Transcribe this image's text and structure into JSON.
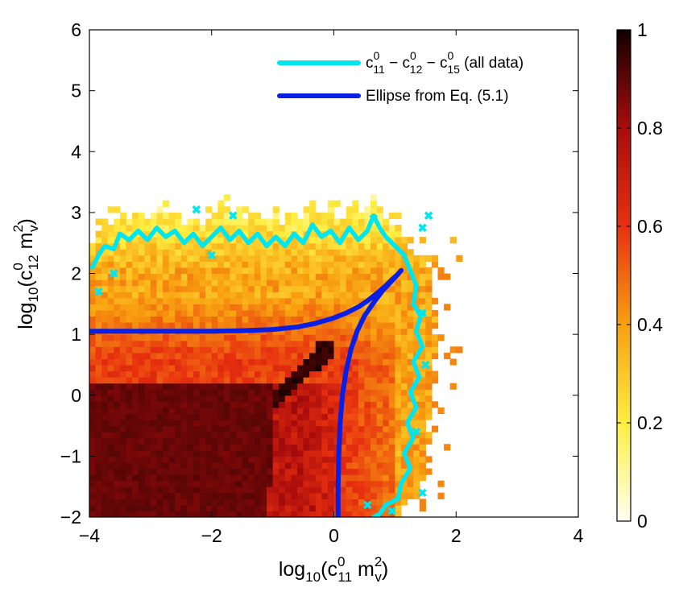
{
  "chart_data": {
    "type": "heatmap",
    "title": "",
    "xlabel": {
      "main": "log",
      "main_sub": "10",
      "open": "(c",
      "sup": "0",
      "sub": "11",
      "mid": " m",
      "sup2": "2",
      "sub2": "v",
      "close": ")"
    },
    "ylabel": {
      "main": "log",
      "main_sub": "10",
      "open": "(c",
      "sup": "0",
      "sub": "12",
      "mid": " m",
      "sup2": "2",
      "sub2": "v",
      "close": ")"
    },
    "xlim": [
      -4,
      4
    ],
    "ylim": [
      -2,
      6
    ],
    "xticks": [
      "−4",
      "−2",
      "0",
      "2",
      "4"
    ],
    "xtick_values": [
      -4,
      -2,
      0,
      2,
      4
    ],
    "yticks": [
      "−2",
      "−1",
      "0",
      "1",
      "2",
      "3",
      "4",
      "5",
      "6"
    ],
    "ytick_values": [
      -2,
      -1,
      0,
      1,
      2,
      3,
      4,
      5,
      6
    ],
    "colorbar": {
      "range": [
        0,
        1
      ],
      "ticks": [
        "0",
        "0.2",
        "0.4",
        "0.6",
        "0.8",
        "1"
      ],
      "tick_values": [
        0,
        0.2,
        0.4,
        0.6,
        0.8,
        1
      ],
      "colormap": "hot (reversed)"
    },
    "heatmap_description": {
      "grid_step": 0.1,
      "dense_region": {
        "x": [
          -4,
          -1.0
        ],
        "y": [
          -2,
          0.2
        ],
        "value": 0.88
      },
      "diagonal_ridge": {
        "from": [
          -1.5,
          -0.5
        ],
        "to": [
          0,
          0.9
        ],
        "value": 0.98
      },
      "mid_region_value": 0.45,
      "outer_region_value": 0.25
    },
    "series": [
      {
        "name": "c0_11 − c0_12 − c0_15 (all data)",
        "color": "#00e5ee",
        "kind": "contour",
        "points": [
          [
            -3.95,
            2.1
          ],
          [
            -3.85,
            2.3
          ],
          [
            -3.75,
            2.45
          ],
          [
            -3.6,
            2.4
          ],
          [
            -3.5,
            2.65
          ],
          [
            -3.35,
            2.55
          ],
          [
            -3.2,
            2.7
          ],
          [
            -3.05,
            2.55
          ],
          [
            -2.9,
            2.75
          ],
          [
            -2.75,
            2.6
          ],
          [
            -2.6,
            2.7
          ],
          [
            -2.45,
            2.5
          ],
          [
            -2.3,
            2.65
          ],
          [
            -2.15,
            2.45
          ],
          [
            -2.0,
            2.6
          ],
          [
            -1.85,
            2.75
          ],
          [
            -1.7,
            2.55
          ],
          [
            -1.55,
            2.7
          ],
          [
            -1.4,
            2.5
          ],
          [
            -1.25,
            2.65
          ],
          [
            -1.1,
            2.45
          ],
          [
            -0.95,
            2.6
          ],
          [
            -0.8,
            2.45
          ],
          [
            -0.65,
            2.65
          ],
          [
            -0.5,
            2.5
          ],
          [
            -0.35,
            2.8
          ],
          [
            -0.2,
            2.6
          ],
          [
            -0.05,
            2.7
          ],
          [
            0.1,
            2.5
          ],
          [
            0.25,
            2.75
          ],
          [
            0.4,
            2.55
          ],
          [
            0.55,
            2.7
          ],
          [
            0.65,
            2.95
          ],
          [
            0.75,
            2.75
          ],
          [
            0.85,
            2.6
          ],
          [
            1.0,
            2.45
          ],
          [
            1.15,
            2.3
          ],
          [
            1.25,
            2.05
          ],
          [
            1.35,
            1.8
          ],
          [
            1.3,
            1.5
          ],
          [
            1.42,
            1.3
          ],
          [
            1.35,
            1.05
          ],
          [
            1.45,
            0.8
          ],
          [
            1.3,
            0.55
          ],
          [
            1.4,
            0.3
          ],
          [
            1.25,
            0.05
          ],
          [
            1.35,
            -0.2
          ],
          [
            1.2,
            -0.45
          ],
          [
            1.3,
            -0.7
          ],
          [
            1.15,
            -0.95
          ],
          [
            1.25,
            -1.2
          ],
          [
            1.1,
            -1.45
          ],
          [
            1.05,
            -1.7
          ],
          [
            0.85,
            -1.8
          ],
          [
            0.75,
            -1.95
          ],
          [
            0.65,
            -2.0
          ]
        ]
      },
      {
        "name": "Ellipse from Eq. (5.1)",
        "color": "#0a1fe6",
        "kind": "line",
        "points": [
          [
            -4.0,
            1.05
          ],
          [
            -3.0,
            1.05
          ],
          [
            -2.0,
            1.05
          ],
          [
            -1.5,
            1.06
          ],
          [
            -1.0,
            1.08
          ],
          [
            -0.6,
            1.12
          ],
          [
            -0.3,
            1.18
          ],
          [
            0.0,
            1.27
          ],
          [
            0.2,
            1.35
          ],
          [
            0.4,
            1.45
          ],
          [
            0.55,
            1.55
          ],
          [
            0.7,
            1.67
          ],
          [
            0.85,
            1.8
          ],
          [
            0.95,
            1.9
          ],
          [
            1.05,
            1.99
          ],
          [
            1.1,
            2.05
          ],
          [
            1.05,
            1.99
          ],
          [
            0.95,
            1.88
          ],
          [
            0.8,
            1.72
          ],
          [
            0.65,
            1.52
          ],
          [
            0.5,
            1.3
          ],
          [
            0.38,
            1.05
          ],
          [
            0.28,
            0.75
          ],
          [
            0.2,
            0.4
          ],
          [
            0.14,
            0.0
          ],
          [
            0.1,
            -0.5
          ],
          [
            0.08,
            -1.0
          ],
          [
            0.07,
            -1.5
          ],
          [
            0.07,
            -2.0
          ]
        ]
      }
    ],
    "legend": {
      "placement": "top-right",
      "entries": [
        {
          "color": "#00e5ee",
          "sym": "c",
          "sup1": "0",
          "sub1": "11",
          "sep1": " − c",
          "sup2": "0",
          "sub2": "12",
          "sep2": " − c",
          "sup3": "0",
          "sub3": "15",
          "tail": " (all data)"
        },
        {
          "color": "#0a1fe6",
          "text": "Ellipse from Eq. (5.1)"
        }
      ]
    }
  }
}
